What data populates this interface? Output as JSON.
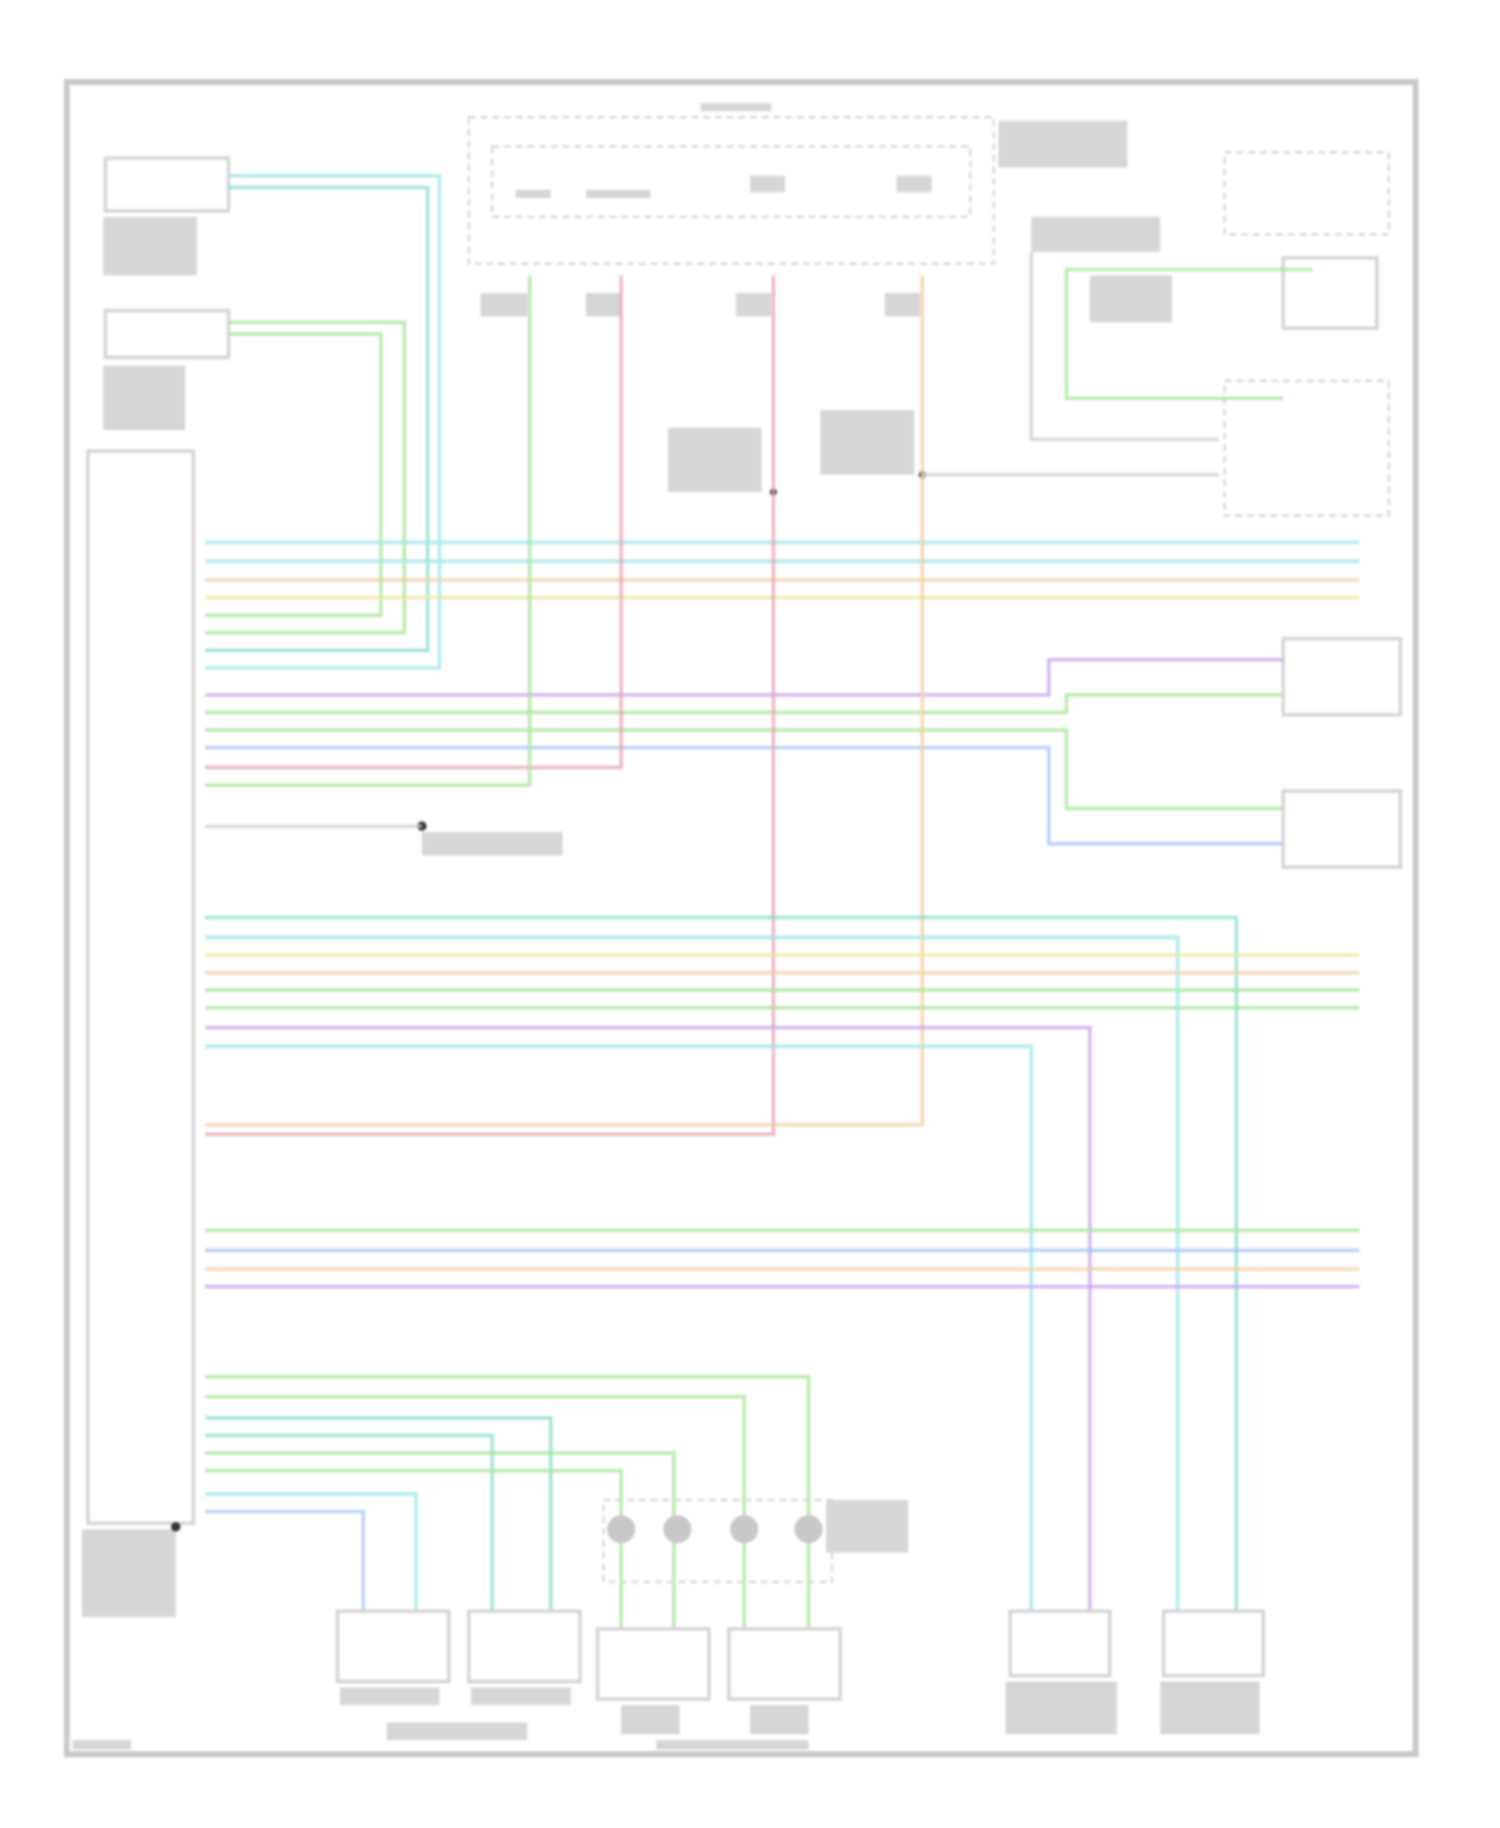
{
  "diagram": {
    "title": "",
    "wire_colors": {
      "cyan": "#9fe6ea",
      "teal": "#8fdccf",
      "green": "#a8e69a",
      "yellow": "#efe7a0",
      "orange": "#f2cfa6",
      "purple": "#c9a6f0",
      "blue": "#a9c6f2",
      "pink": "#e8a6b4",
      "frame": "#c8c8c8"
    },
    "wire_count": 38
  }
}
